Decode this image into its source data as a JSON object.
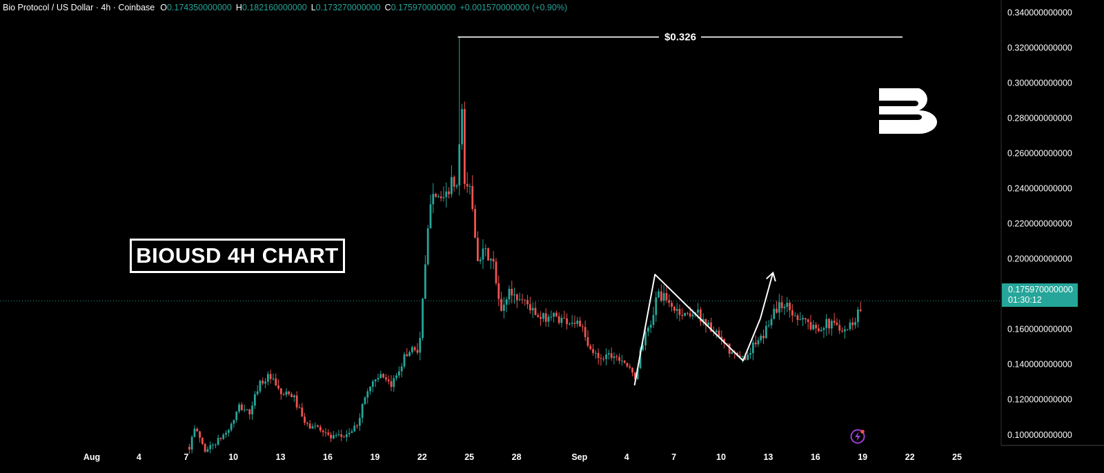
{
  "header": {
    "title": "Bio Protocol / US Dollar · 4h · Coinbase",
    "open_key": "O",
    "open": "0.174350000000",
    "high_key": "H",
    "high": "0.182160000000",
    "low_key": "L",
    "low": "0.173270000000",
    "close_key": "C",
    "close": "0.175970000000",
    "change": "+0.001570000000 (+0.90%)"
  },
  "price_tag": {
    "price": "0.175970000000",
    "countdown": "01:30:12"
  },
  "annotation_box": "BIOUSD 4H CHART",
  "peak_label": "$0.326",
  "colors": {
    "up": "#26a69a",
    "down": "#ef5350",
    "background": "#000000",
    "text": "#ffffff"
  },
  "icons": [
    "brand-b-logo-icon",
    "lightning-icon"
  ],
  "chart_data": {
    "type": "candlestick",
    "title": "Bio Protocol / US Dollar · 4h · Coinbase",
    "y_ticks": [
      "0.340000000000",
      "0.320000000000",
      "0.300000000000",
      "0.280000000000",
      "0.260000000000",
      "0.240000000000",
      "0.220000000000",
      "0.200000000000",
      "0.180000000000",
      "0.160000000000",
      "0.140000000000",
      "0.120000000000",
      "0.100000000000"
    ],
    "y_tick_values": [
      0.34,
      0.32,
      0.3,
      0.28,
      0.26,
      0.24,
      0.22,
      0.2,
      0.18,
      0.16,
      0.14,
      0.12,
      0.1
    ],
    "ylim": [
      0.0856,
      0.3435
    ],
    "x_ticks": [
      "Aug",
      "4",
      "7",
      "10",
      "13",
      "16",
      "19",
      "22",
      "25",
      "28",
      "Sep",
      "4",
      "7",
      "10",
      "13",
      "16",
      "19",
      "22",
      "25"
    ],
    "x_tick_days": [
      1,
      4,
      7,
      10,
      13,
      16,
      19,
      22,
      25,
      28,
      32,
      35,
      38,
      41,
      44,
      47,
      50,
      53,
      56
    ],
    "xlim": [
      1,
      56
    ],
    "last_price": 0.17597,
    "peak": {
      "day": 24.4,
      "value": 0.326
    },
    "trend_lines": [
      {
        "points": [
          [
            35.5,
            0.128
          ],
          [
            36.8,
            0.191
          ],
          [
            42.4,
            0.142
          ],
          [
            43.5,
            0.166
          ]
        ]
      },
      {
        "points": [
          [
            43.5,
            0.166
          ],
          [
            44.3,
            0.192
          ]
        ],
        "arrow": true
      }
    ],
    "price_anchors": [
      [
        7.2,
        0.093
      ],
      [
        7.6,
        0.104
      ],
      [
        8.2,
        0.091
      ],
      [
        9.1,
        0.097
      ],
      [
        9.8,
        0.104
      ],
      [
        10.4,
        0.116
      ],
      [
        11.1,
        0.112
      ],
      [
        11.6,
        0.129
      ],
      [
        12.3,
        0.133
      ],
      [
        13.0,
        0.123
      ],
      [
        13.8,
        0.122
      ],
      [
        14.6,
        0.105
      ],
      [
        15.5,
        0.104
      ],
      [
        16.2,
        0.098
      ],
      [
        17.0,
        0.099
      ],
      [
        17.8,
        0.104
      ],
      [
        18.5,
        0.125
      ],
      [
        19.2,
        0.134
      ],
      [
        20.0,
        0.127
      ],
      [
        20.8,
        0.143
      ],
      [
        21.4,
        0.15
      ],
      [
        21.8,
        0.147
      ],
      [
        22.2,
        0.195
      ],
      [
        22.6,
        0.242
      ],
      [
        23.0,
        0.236
      ],
      [
        23.4,
        0.231
      ],
      [
        23.8,
        0.243
      ],
      [
        24.2,
        0.24
      ],
      [
        24.4,
        0.31
      ],
      [
        24.7,
        0.243
      ],
      [
        25.1,
        0.239
      ],
      [
        25.5,
        0.202
      ],
      [
        26.0,
        0.203
      ],
      [
        26.5,
        0.198
      ],
      [
        27.0,
        0.168
      ],
      [
        27.5,
        0.182
      ],
      [
        28.0,
        0.178
      ],
      [
        28.6,
        0.176
      ],
      [
        29.4,
        0.165
      ],
      [
        30.2,
        0.168
      ],
      [
        31.0,
        0.165
      ],
      [
        32.0,
        0.164
      ],
      [
        32.6,
        0.148
      ],
      [
        33.3,
        0.144
      ],
      [
        34.0,
        0.146
      ],
      [
        34.8,
        0.143
      ],
      [
        35.5,
        0.131
      ],
      [
        36.0,
        0.152
      ],
      [
        36.5,
        0.162
      ],
      [
        37.0,
        0.181
      ],
      [
        37.8,
        0.173
      ],
      [
        38.6,
        0.168
      ],
      [
        39.4,
        0.17
      ],
      [
        40.2,
        0.162
      ],
      [
        41.0,
        0.153
      ],
      [
        41.8,
        0.145
      ],
      [
        42.4,
        0.143
      ],
      [
        43.0,
        0.15
      ],
      [
        43.6,
        0.154
      ],
      [
        44.3,
        0.17
      ],
      [
        45.0,
        0.175
      ],
      [
        45.6,
        0.168
      ],
      [
        46.2,
        0.167
      ],
      [
        46.8,
        0.16
      ],
      [
        47.6,
        0.163
      ],
      [
        48.4,
        0.162
      ],
      [
        49.0,
        0.16
      ],
      [
        49.6,
        0.167
      ],
      [
        50.0,
        0.176
      ]
    ]
  }
}
